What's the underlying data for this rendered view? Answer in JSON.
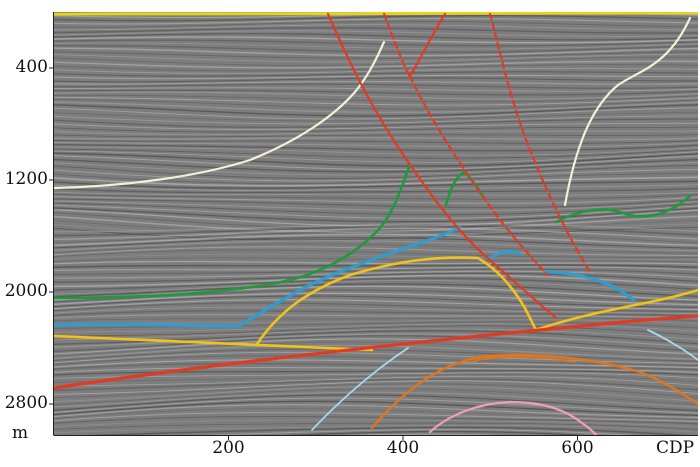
{
  "figure": {
    "y_axis": {
      "unit": "m",
      "ticks": [
        {
          "label": "400",
          "value": 400
        },
        {
          "label": "1200",
          "value": 1200
        },
        {
          "label": "2000",
          "value": 2000
        },
        {
          "label": "2800",
          "value": 2800
        }
      ]
    },
    "x_axis": {
      "unit": "CDP",
      "ticks": [
        {
          "label": "200",
          "value": 200
        },
        {
          "label": "400",
          "value": 400
        },
        {
          "label": "600",
          "value": 600
        }
      ]
    },
    "colors": {
      "background": "#7d7d7d",
      "fault": "#e23a22",
      "horizon_white": "#f4f0d8",
      "horizon_green": "#1e9a3c",
      "horizon_blue": "#2a9fd6",
      "horizon_yellow": "#f2c21a",
      "horizon_red": "#e23a22",
      "horizon_orange": "#e2751c",
      "horizon_pink": "#f0a0b4",
      "horizon_lightblue": "#a8d8f0",
      "top_line": "#e8d21c"
    }
  }
}
